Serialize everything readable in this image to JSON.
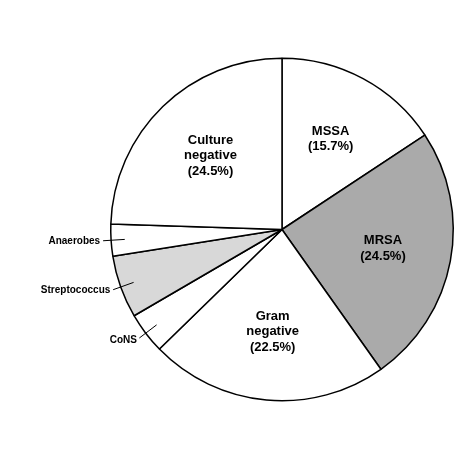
{
  "chart_data": {
    "type": "pie",
    "categories": [
      "MSSA\n(15.7%)",
      "MRSA\n(24.5%)",
      "Gram\nnegative\n(22.5%)",
      "CoNS",
      "Streptococcus",
      "Anaerobes",
      "Culture\nnegative\n(24.5%)"
    ],
    "values": [
      15.7,
      24.5,
      22.5,
      3.9,
      5.9,
      3.0,
      24.5
    ],
    "colors": [
      "#ffffff",
      "#aaaaaa",
      "#ffffff",
      "#ffffff",
      "#d8d8d8",
      "#ffffff",
      "#ffffff"
    ]
  }
}
